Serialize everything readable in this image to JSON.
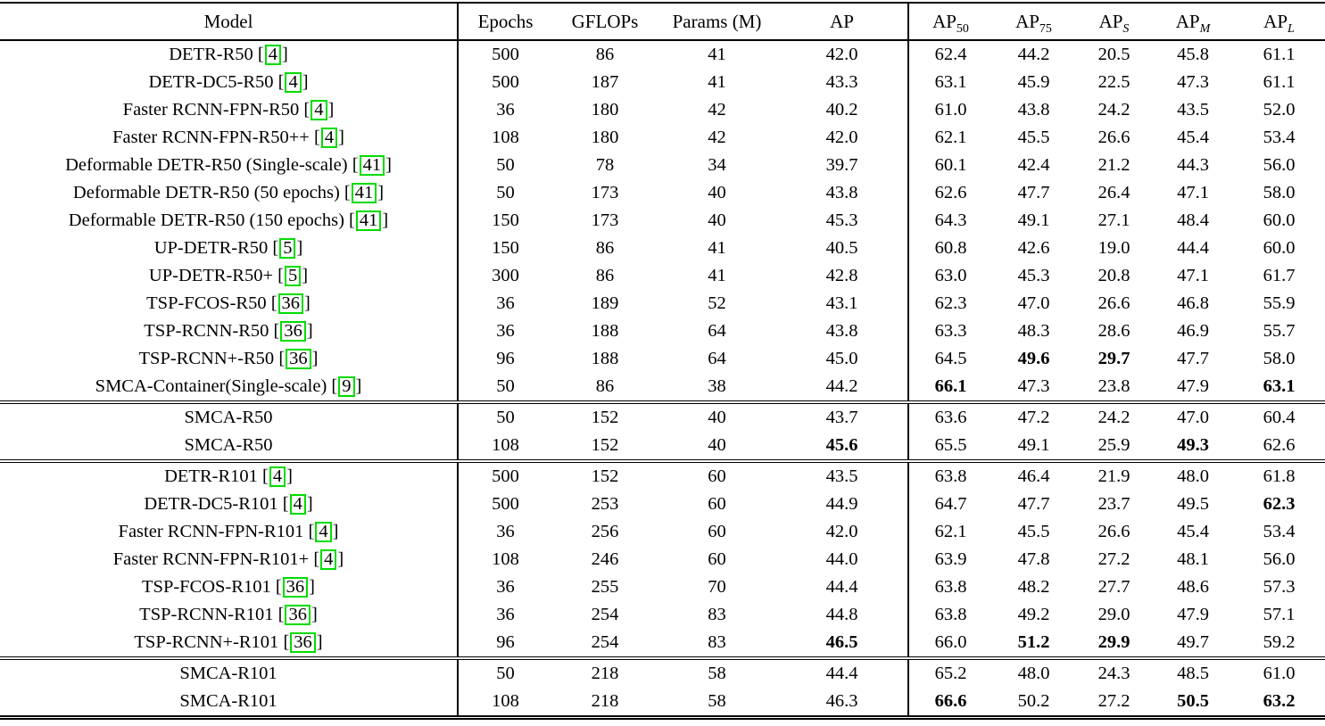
{
  "table": {
    "citation_box_color": "#00dc00",
    "columns": [
      {
        "text": "Model"
      },
      {
        "text": "Epochs"
      },
      {
        "text": "GFLOPs"
      },
      {
        "text": "Params (M)"
      },
      {
        "text": "AP"
      },
      {
        "text": "AP",
        "sub": "50"
      },
      {
        "text": "AP",
        "sub": "75"
      },
      {
        "text": "AP",
        "sub": "S",
        "italic_sub": true
      },
      {
        "text": "AP",
        "sub": "M",
        "italic_sub": true
      },
      {
        "text": "AP",
        "sub": "L",
        "italic_sub": true
      }
    ],
    "sections": [
      {
        "rows": [
          {
            "model": "DETR-R50",
            "cite": "4",
            "values": [
              "500",
              "86",
              "41",
              "42.0",
              "62.4",
              "44.2",
              "20.5",
              "45.8",
              "61.1"
            ],
            "bold": []
          },
          {
            "model": "DETR-DC5-R50",
            "cite": "4",
            "values": [
              "500",
              "187",
              "41",
              "43.3",
              "63.1",
              "45.9",
              "22.5",
              "47.3",
              "61.1"
            ],
            "bold": []
          },
          {
            "model": "Faster RCNN-FPN-R50",
            "cite": "4",
            "values": [
              "36",
              "180",
              "42",
              "40.2",
              "61.0",
              "43.8",
              "24.2",
              "43.5",
              "52.0"
            ],
            "bold": []
          },
          {
            "model": "Faster RCNN-FPN-R50++",
            "cite": "4",
            "values": [
              "108",
              "180",
              "42",
              "42.0",
              "62.1",
              "45.5",
              "26.6",
              "45.4",
              "53.4"
            ],
            "bold": []
          },
          {
            "model": "Deformable DETR-R50 (Single-scale)",
            "cite": "41",
            "values": [
              "50",
              "78",
              "34",
              "39.7",
              "60.1",
              "42.4",
              "21.2",
              "44.3",
              "56.0"
            ],
            "bold": []
          },
          {
            "model": "Deformable DETR-R50 (50 epochs)",
            "cite": "41",
            "values": [
              "50",
              "173",
              "40",
              "43.8",
              "62.6",
              "47.7",
              "26.4",
              "47.1",
              "58.0"
            ],
            "bold": []
          },
          {
            "model": "Deformable DETR-R50 (150 epochs)",
            "cite": "41",
            "values": [
              "150",
              "173",
              "40",
              "45.3",
              "64.3",
              "49.1",
              "27.1",
              "48.4",
              "60.0"
            ],
            "bold": []
          },
          {
            "model": "UP-DETR-R50",
            "cite": "5",
            "values": [
              "150",
              "86",
              "41",
              "40.5",
              "60.8",
              "42.6",
              "19.0",
              "44.4",
              "60.0"
            ],
            "bold": []
          },
          {
            "model": "UP-DETR-R50+",
            "cite": "5",
            "values": [
              "300",
              "86",
              "41",
              "42.8",
              "63.0",
              "45.3",
              "20.8",
              "47.1",
              "61.7"
            ],
            "bold": []
          },
          {
            "model": "TSP-FCOS-R50",
            "cite": "36",
            "values": [
              "36",
              "189",
              "52",
              "43.1",
              "62.3",
              "47.0",
              "26.6",
              "46.8",
              "55.9"
            ],
            "bold": []
          },
          {
            "model": "TSP-RCNN-R50",
            "cite": "36",
            "values": [
              "36",
              "188",
              "64",
              "43.8",
              "63.3",
              "48.3",
              "28.6",
              "46.9",
              "55.7"
            ],
            "bold": []
          },
          {
            "model": "TSP-RCNN+-R50",
            "cite": "36",
            "values": [
              "96",
              "188",
              "64",
              "45.0",
              "64.5",
              "49.6",
              "29.7",
              "47.7",
              "58.0"
            ],
            "bold": [
              5,
              6
            ]
          },
          {
            "model": "SMCA-Container(Single-scale)",
            "cite": "9",
            "values": [
              "50",
              "86",
              "38",
              "44.2",
              "66.1",
              "47.3",
              "23.8",
              "47.9",
              "63.1"
            ],
            "bold": [
              4,
              8
            ]
          }
        ]
      },
      {
        "rows": [
          {
            "model": "SMCA-R50",
            "cite": null,
            "values": [
              "50",
              "152",
              "40",
              "43.7",
              "63.6",
              "47.2",
              "24.2",
              "47.0",
              "60.4"
            ],
            "bold": []
          },
          {
            "model": "SMCA-R50",
            "cite": null,
            "values": [
              "108",
              "152",
              "40",
              "45.6",
              "65.5",
              "49.1",
              "25.9",
              "49.3",
              "62.6"
            ],
            "bold": [
              3,
              7
            ]
          }
        ]
      },
      {
        "rows": [
          {
            "model": "DETR-R101",
            "cite": "4",
            "values": [
              "500",
              "152",
              "60",
              "43.5",
              "63.8",
              "46.4",
              "21.9",
              "48.0",
              "61.8"
            ],
            "bold": []
          },
          {
            "model": "DETR-DC5-R101",
            "cite": "4",
            "values": [
              "500",
              "253",
              "60",
              "44.9",
              "64.7",
              "47.7",
              "23.7",
              "49.5",
              "62.3"
            ],
            "bold": [
              8
            ]
          },
          {
            "model": "Faster RCNN-FPN-R101",
            "cite": "4",
            "values": [
              "36",
              "256",
              "60",
              "42.0",
              "62.1",
              "45.5",
              "26.6",
              "45.4",
              "53.4"
            ],
            "bold": []
          },
          {
            "model": "Faster RCNN-FPN-R101+",
            "cite": "4",
            "values": [
              "108",
              "246",
              "60",
              "44.0",
              "63.9",
              "47.8",
              "27.2",
              "48.1",
              "56.0"
            ],
            "bold": []
          },
          {
            "model": "TSP-FCOS-R101",
            "cite": "36",
            "values": [
              "36",
              "255",
              "70",
              "44.4",
              "63.8",
              "48.2",
              "27.7",
              "48.6",
              "57.3"
            ],
            "bold": []
          },
          {
            "model": "TSP-RCNN-R101",
            "cite": "36",
            "values": [
              "36",
              "254",
              "83",
              "44.8",
              "63.8",
              "49.2",
              "29.0",
              "47.9",
              "57.1"
            ],
            "bold": []
          },
          {
            "model": "TSP-RCNN+-R101",
            "cite": "36",
            "values": [
              "96",
              "254",
              "83",
              "46.5",
              "66.0",
              "51.2",
              "29.9",
              "49.7",
              "59.2"
            ],
            "bold": [
              3,
              5,
              6
            ]
          }
        ]
      },
      {
        "rows": [
          {
            "model": "SMCA-R101",
            "cite": null,
            "values": [
              "50",
              "218",
              "58",
              "44.4",
              "65.2",
              "48.0",
              "24.3",
              "48.5",
              "61.0"
            ],
            "bold": []
          },
          {
            "model": "SMCA-R101",
            "cite": null,
            "values": [
              "108",
              "218",
              "58",
              "46.3",
              "66.6",
              "50.2",
              "27.2",
              "50.5",
              "63.2"
            ],
            "bold": [
              4,
              7,
              8
            ]
          }
        ]
      }
    ]
  }
}
